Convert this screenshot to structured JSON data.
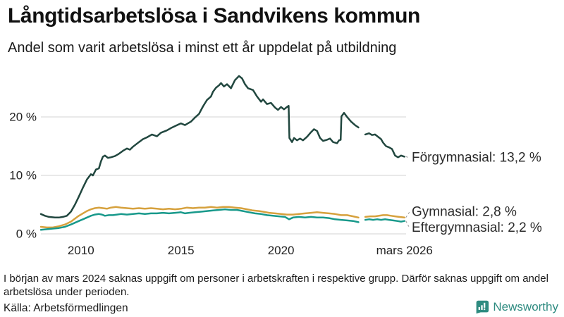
{
  "header": {
    "title": "Långtidsarbetslösa i Sandvikens kommun",
    "subtitle": "Andel som varit arbetslösa i minst ett år uppdelat på utbildning"
  },
  "footer": {
    "note": "I början av mars 2024 saknas uppgift om personer i arbetskraften i respektive grupp. Därför saknas uppgift om andel arbetslösa under perioden.",
    "source": "Källa: Arbetsförmedlingen",
    "brand": "Newsworthy",
    "brand_color": "#2e8b80"
  },
  "chart_data": {
    "type": "line",
    "title": "Långtidsarbetslösa i Sandvikens kommun",
    "subtitle": "Andel som varit arbetslösa i minst ett år uppdelat på utbildning",
    "grid": true,
    "gridline_color": "#dcdcdc",
    "connector_color": "#999999",
    "x_axis": {
      "range": [
        2008,
        2026.25
      ],
      "ticks": [
        {
          "year": 2010,
          "label": "2010"
        },
        {
          "year": 2015,
          "label": "2015"
        },
        {
          "year": 2020,
          "label": "2020"
        },
        {
          "year": 2026.17,
          "label": "mars 2026"
        }
      ]
    },
    "y_axis": {
      "range": [
        0,
        30
      ],
      "unit": "%",
      "ticks": [
        {
          "value": 0,
          "label": "0 %"
        },
        {
          "value": 10,
          "label": "10 %"
        },
        {
          "value": 20,
          "label": "20 %"
        }
      ]
    },
    "series": [
      {
        "name": "Förgymnasial",
        "end_label": "Förgymnasial: 13,2 %",
        "end_value": 13.2,
        "color": "#21473f",
        "points": [
          [
            2008.0,
            3.4
          ],
          [
            2008.2,
            3.1
          ],
          [
            2008.4,
            2.9
          ],
          [
            2008.7,
            2.8
          ],
          [
            2008.9,
            2.8
          ],
          [
            2009.1,
            2.9
          ],
          [
            2009.3,
            3.1
          ],
          [
            2009.5,
            3.8
          ],
          [
            2009.7,
            5.0
          ],
          [
            2009.9,
            6.4
          ],
          [
            2010.1,
            7.9
          ],
          [
            2010.3,
            9.3
          ],
          [
            2010.5,
            10.2
          ],
          [
            2010.6,
            10.0
          ],
          [
            2010.75,
            11.0
          ],
          [
            2010.9,
            11.2
          ],
          [
            2011.0,
            12.4
          ],
          [
            2011.1,
            13.2
          ],
          [
            2011.2,
            13.4
          ],
          [
            2011.35,
            13.0
          ],
          [
            2011.5,
            13.1
          ],
          [
            2011.7,
            13.3
          ],
          [
            2011.9,
            13.7
          ],
          [
            2012.1,
            14.2
          ],
          [
            2012.3,
            14.6
          ],
          [
            2012.45,
            14.4
          ],
          [
            2012.6,
            14.9
          ],
          [
            2012.9,
            15.7
          ],
          [
            2013.1,
            16.2
          ],
          [
            2013.3,
            16.5
          ],
          [
            2013.55,
            17.0
          ],
          [
            2013.8,
            16.7
          ],
          [
            2014.0,
            17.3
          ],
          [
            2014.3,
            17.7
          ],
          [
            2014.5,
            18.1
          ],
          [
            2014.75,
            18.5
          ],
          [
            2015.0,
            18.9
          ],
          [
            2015.2,
            18.6
          ],
          [
            2015.5,
            19.2
          ],
          [
            2015.7,
            19.9
          ],
          [
            2015.9,
            20.5
          ],
          [
            2016.1,
            21.8
          ],
          [
            2016.3,
            22.9
          ],
          [
            2016.5,
            23.5
          ],
          [
            2016.6,
            24.3
          ],
          [
            2016.75,
            25.0
          ],
          [
            2016.9,
            25.4
          ],
          [
            2017.0,
            25.8
          ],
          [
            2017.15,
            25.2
          ],
          [
            2017.3,
            25.6
          ],
          [
            2017.5,
            24.9
          ],
          [
            2017.7,
            26.3
          ],
          [
            2017.9,
            27.0
          ],
          [
            2018.05,
            26.6
          ],
          [
            2018.2,
            25.6
          ],
          [
            2018.35,
            24.9
          ],
          [
            2018.6,
            24.6
          ],
          [
            2018.8,
            23.5
          ],
          [
            2019.0,
            22.6
          ],
          [
            2019.1,
            23.0
          ],
          [
            2019.3,
            22.2
          ],
          [
            2019.5,
            22.4
          ],
          [
            2019.7,
            21.6
          ],
          [
            2019.85,
            21.2
          ],
          [
            2020.0,
            21.7
          ],
          [
            2020.15,
            21.3
          ],
          [
            2020.3,
            21.7
          ],
          [
            2020.38,
            21.9
          ],
          [
            2020.42,
            16.4
          ],
          [
            2020.55,
            15.7
          ],
          [
            2020.65,
            16.4
          ],
          [
            2020.8,
            16.0
          ],
          [
            2020.95,
            16.3
          ],
          [
            2021.1,
            16.0
          ],
          [
            2021.3,
            16.6
          ],
          [
            2021.5,
            17.4
          ],
          [
            2021.65,
            17.9
          ],
          [
            2021.8,
            17.6
          ],
          [
            2021.95,
            16.4
          ],
          [
            2022.1,
            15.9
          ],
          [
            2022.3,
            16.1
          ],
          [
            2022.45,
            16.3
          ],
          [
            2022.6,
            15.7
          ],
          [
            2022.8,
            15.5
          ],
          [
            2022.9,
            16.0
          ],
          [
            2022.98,
            16.1
          ],
          [
            2023.02,
            20.1
          ],
          [
            2023.15,
            20.7
          ],
          [
            2023.3,
            20.0
          ],
          [
            2023.5,
            19.2
          ],
          [
            2023.7,
            18.6
          ],
          [
            2023.87,
            18.2
          ],
          null,
          [
            2024.21,
            17.0
          ],
          [
            2024.4,
            17.2
          ],
          [
            2024.55,
            16.9
          ],
          [
            2024.7,
            17.0
          ],
          [
            2024.85,
            16.6
          ],
          [
            2025.0,
            16.2
          ],
          [
            2025.1,
            15.6
          ],
          [
            2025.25,
            15.0
          ],
          [
            2025.4,
            14.8
          ],
          [
            2025.55,
            14.5
          ],
          [
            2025.7,
            13.4
          ],
          [
            2025.85,
            13.1
          ],
          [
            2026.0,
            13.4
          ],
          [
            2026.17,
            13.2
          ]
        ]
      },
      {
        "name": "Gymnasial",
        "end_label": "Gymnasial:  2,8 %",
        "end_value": 2.8,
        "color": "#d6a13d",
        "points": [
          [
            2008.0,
            1.2
          ],
          [
            2008.3,
            1.1
          ],
          [
            2008.6,
            1.1
          ],
          [
            2008.9,
            1.3
          ],
          [
            2009.2,
            1.6
          ],
          [
            2009.5,
            2.1
          ],
          [
            2009.7,
            2.6
          ],
          [
            2009.9,
            3.1
          ],
          [
            2010.1,
            3.5
          ],
          [
            2010.3,
            3.9
          ],
          [
            2010.5,
            4.2
          ],
          [
            2010.7,
            4.4
          ],
          [
            2010.9,
            4.5
          ],
          [
            2011.1,
            4.4
          ],
          [
            2011.3,
            4.3
          ],
          [
            2011.5,
            4.5
          ],
          [
            2011.75,
            4.6
          ],
          [
            2012.0,
            4.5
          ],
          [
            2012.3,
            4.4
          ],
          [
            2012.6,
            4.3
          ],
          [
            2012.9,
            4.4
          ],
          [
            2013.2,
            4.3
          ],
          [
            2013.5,
            4.4
          ],
          [
            2013.8,
            4.3
          ],
          [
            2014.1,
            4.2
          ],
          [
            2014.4,
            4.3
          ],
          [
            2014.7,
            4.2
          ],
          [
            2015.0,
            4.3
          ],
          [
            2015.3,
            4.5
          ],
          [
            2015.6,
            4.4
          ],
          [
            2015.9,
            4.5
          ],
          [
            2016.2,
            4.5
          ],
          [
            2016.5,
            4.6
          ],
          [
            2016.8,
            4.5
          ],
          [
            2017.1,
            4.6
          ],
          [
            2017.4,
            4.6
          ],
          [
            2017.7,
            4.5
          ],
          [
            2018.0,
            4.4
          ],
          [
            2018.3,
            4.2
          ],
          [
            2018.6,
            4.0
          ],
          [
            2018.9,
            3.9
          ],
          [
            2019.1,
            3.8
          ],
          [
            2019.4,
            3.6
          ],
          [
            2019.7,
            3.5
          ],
          [
            2020.0,
            3.4
          ],
          [
            2020.3,
            3.3
          ],
          [
            2020.6,
            3.3
          ],
          [
            2020.9,
            3.4
          ],
          [
            2021.2,
            3.5
          ],
          [
            2021.5,
            3.6
          ],
          [
            2021.8,
            3.7
          ],
          [
            2022.1,
            3.6
          ],
          [
            2022.4,
            3.5
          ],
          [
            2022.7,
            3.4
          ],
          [
            2023.0,
            3.2
          ],
          [
            2023.3,
            3.2
          ],
          [
            2023.6,
            3.0
          ],
          [
            2023.87,
            2.8
          ],
          null,
          [
            2024.21,
            2.9
          ],
          [
            2024.45,
            3.0
          ],
          [
            2024.7,
            3.0
          ],
          [
            2024.9,
            3.1
          ],
          [
            2025.1,
            3.2
          ],
          [
            2025.3,
            3.2
          ],
          [
            2025.5,
            3.1
          ],
          [
            2025.7,
            3.0
          ],
          [
            2025.9,
            2.9
          ],
          [
            2026.17,
            2.8
          ]
        ]
      },
      {
        "name": "Eftergymnasial",
        "end_label": "Eftergymnasial:  2,2 %",
        "end_value": 2.2,
        "color": "#18998b",
        "points": [
          [
            2008.0,
            0.7
          ],
          [
            2008.3,
            0.8
          ],
          [
            2008.6,
            0.9
          ],
          [
            2008.9,
            1.0
          ],
          [
            2009.2,
            1.2
          ],
          [
            2009.5,
            1.6
          ],
          [
            2009.7,
            1.9
          ],
          [
            2009.9,
            2.2
          ],
          [
            2010.1,
            2.5
          ],
          [
            2010.3,
            2.8
          ],
          [
            2010.5,
            3.1
          ],
          [
            2010.7,
            3.3
          ],
          [
            2010.9,
            3.4
          ],
          [
            2011.05,
            3.3
          ],
          [
            2011.2,
            3.1
          ],
          [
            2011.4,
            3.2
          ],
          [
            2011.6,
            3.2
          ],
          [
            2011.8,
            3.3
          ],
          [
            2012.0,
            3.4
          ],
          [
            2012.3,
            3.3
          ],
          [
            2012.6,
            3.4
          ],
          [
            2012.9,
            3.5
          ],
          [
            2013.2,
            3.4
          ],
          [
            2013.5,
            3.5
          ],
          [
            2013.8,
            3.5
          ],
          [
            2014.1,
            3.6
          ],
          [
            2014.4,
            3.5
          ],
          [
            2014.7,
            3.6
          ],
          [
            2015.0,
            3.7
          ],
          [
            2015.2,
            3.5
          ],
          [
            2015.4,
            3.6
          ],
          [
            2015.7,
            3.7
          ],
          [
            2016.0,
            3.8
          ],
          [
            2016.3,
            3.9
          ],
          [
            2016.6,
            4.0
          ],
          [
            2016.9,
            4.1
          ],
          [
            2017.2,
            4.2
          ],
          [
            2017.5,
            4.1
          ],
          [
            2017.8,
            4.1
          ],
          [
            2018.1,
            3.9
          ],
          [
            2018.4,
            3.7
          ],
          [
            2018.7,
            3.5
          ],
          [
            2019.0,
            3.4
          ],
          [
            2019.3,
            3.2
          ],
          [
            2019.6,
            3.1
          ],
          [
            2019.9,
            3.0
          ],
          [
            2020.2,
            2.9
          ],
          [
            2020.4,
            2.5
          ],
          [
            2020.6,
            2.8
          ],
          [
            2020.9,
            2.9
          ],
          [
            2021.2,
            2.8
          ],
          [
            2021.5,
            2.9
          ],
          [
            2021.8,
            2.8
          ],
          [
            2022.1,
            2.8
          ],
          [
            2022.4,
            2.7
          ],
          [
            2022.7,
            2.5
          ],
          [
            2023.0,
            2.4
          ],
          [
            2023.3,
            2.3
          ],
          [
            2023.6,
            2.2
          ],
          [
            2023.87,
            2.0
          ],
          null,
          [
            2024.21,
            2.4
          ],
          [
            2024.4,
            2.5
          ],
          [
            2024.6,
            2.4
          ],
          [
            2024.8,
            2.5
          ],
          [
            2025.0,
            2.4
          ],
          [
            2025.2,
            2.5
          ],
          [
            2025.4,
            2.4
          ],
          [
            2025.6,
            2.3
          ],
          [
            2025.8,
            2.2
          ],
          [
            2026.0,
            2.1
          ],
          [
            2026.17,
            2.2
          ]
        ]
      }
    ]
  }
}
